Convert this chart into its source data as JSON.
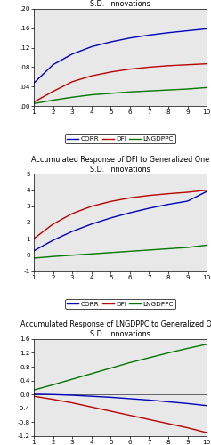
{
  "panel1": {
    "title": "Accumulated Response of CORR to Generalized One\nS.D.  Innovations",
    "ylim": [
      0.0,
      0.2
    ],
    "yticks": [
      0.0,
      0.04,
      0.08,
      0.12,
      0.16,
      0.2
    ],
    "ytick_labels": [
      ".00",
      ".04",
      ".08",
      ".12",
      ".16",
      ".20"
    ],
    "corr": [
      0.047,
      0.085,
      0.107,
      0.122,
      0.132,
      0.14,
      0.146,
      0.151,
      0.155,
      0.159
    ],
    "dfi": [
      0.008,
      0.03,
      0.05,
      0.062,
      0.07,
      0.076,
      0.08,
      0.083,
      0.085,
      0.087
    ],
    "lngdppc": [
      0.005,
      0.012,
      0.018,
      0.023,
      0.026,
      0.029,
      0.031,
      0.033,
      0.035,
      0.038
    ]
  },
  "panel2": {
    "title": "Accumulated Response of DFI to Generalized One\nS.D.  Innovations",
    "ylim": [
      -1,
      5
    ],
    "yticks": [
      -1,
      0,
      1,
      2,
      3,
      4,
      5
    ],
    "ytick_labels": [
      "-1",
      "0",
      "1",
      "2",
      "3",
      "4",
      "5"
    ],
    "corr": [
      0.25,
      0.9,
      1.45,
      1.9,
      2.28,
      2.6,
      2.88,
      3.12,
      3.32,
      3.92
    ],
    "dfi": [
      1.0,
      1.9,
      2.55,
      3.0,
      3.3,
      3.52,
      3.67,
      3.78,
      3.87,
      4.0
    ],
    "lngdppc": [
      -0.2,
      -0.1,
      -0.02,
      0.06,
      0.14,
      0.22,
      0.3,
      0.38,
      0.46,
      0.6
    ]
  },
  "panel3": {
    "title": "Accumulated Response of LNGDPPC to Generalized One\nS.D.  Innovations",
    "ylim": [
      -1.2,
      1.6
    ],
    "yticks": [
      -1.2,
      -0.8,
      -0.4,
      0.0,
      0.4,
      0.8,
      1.2,
      1.6
    ],
    "ytick_labels": [
      "-1.2",
      "-0.8",
      "-0.4",
      "0.0",
      "0.4",
      "0.8",
      "1.2",
      "1.6"
    ],
    "corr": [
      0.01,
      0.0,
      -0.02,
      -0.05,
      -0.08,
      -0.12,
      -0.16,
      -0.21,
      -0.26,
      -0.32
    ],
    "dfi": [
      -0.05,
      -0.14,
      -0.24,
      -0.36,
      -0.48,
      -0.6,
      -0.72,
      -0.84,
      -0.96,
      -1.1
    ],
    "lngdppc": [
      0.13,
      0.28,
      0.44,
      0.6,
      0.76,
      0.92,
      1.06,
      1.2,
      1.33,
      1.45
    ]
  },
  "colors": {
    "corr": "#0000BB",
    "dfi": "#BB0000",
    "lngdppc": "#007700"
  },
  "x": [
    1,
    2,
    3,
    4,
    5,
    6,
    7,
    8,
    9,
    10
  ],
  "bg_color": "#e8e8e8",
  "title_fontsize": 5.8,
  "tick_fontsize": 5.2,
  "legend_fontsize": 5.2,
  "linewidth": 1.0
}
